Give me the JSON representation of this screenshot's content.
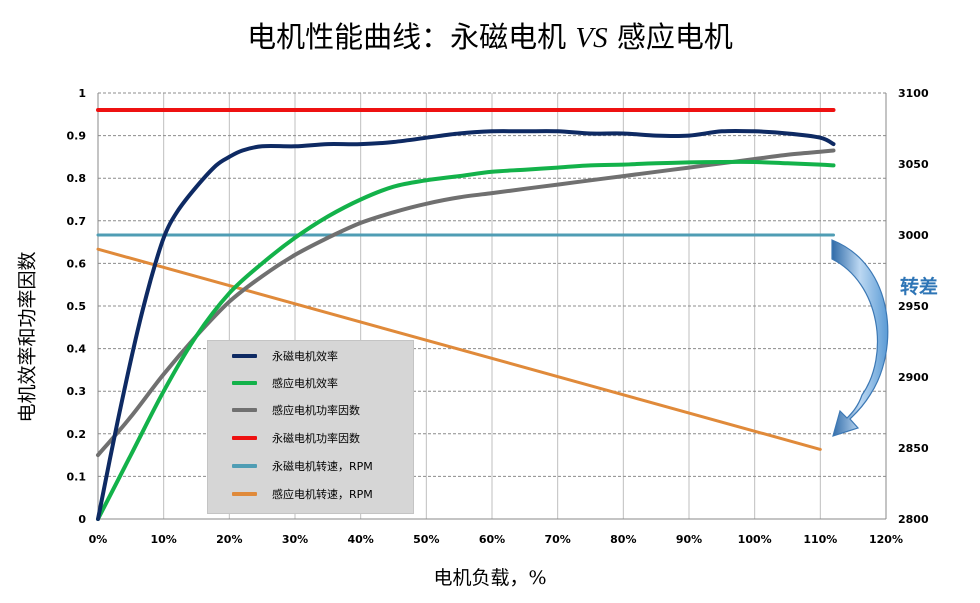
{
  "title_main": "电机性能曲线：永磁电机 ",
  "title_vs": "VS",
  "title_rest": " 感应电机",
  "ylabel_left": "电机效率和功率因数",
  "xlabel": "电机负载，%",
  "annotation": "转差",
  "colors": {
    "pm_efficiency": "#0e2a63",
    "im_efficiency": "#13b24a",
    "im_power_factor": "#707070",
    "pm_power_factor": "#ee1111",
    "pm_speed": "#4f9db4",
    "im_speed": "#e08a3a",
    "arrow": "#5b9bd5"
  },
  "legend": [
    {
      "label": "永磁电机效率",
      "color": "#0e2a63"
    },
    {
      "label": "感应电机效率",
      "color": "#13b24a"
    },
    {
      "label": "感应电机功率因数",
      "color": "#707070"
    },
    {
      "label": "永磁电机功率因数",
      "color": "#ee1111"
    },
    {
      "label": "永磁电机转速，RPM",
      "color": "#4f9db4"
    },
    {
      "label": "感应电机转速，RPM",
      "color": "#e08a3a"
    }
  ],
  "chart_data": {
    "type": "line",
    "x_ticks": [
      "0%",
      "10%",
      "20%",
      "30%",
      "40%",
      "50%",
      "60%",
      "70%",
      "80%",
      "90%",
      "100%",
      "110%",
      "120%"
    ],
    "y_left_ticks": [
      "0",
      "0.1",
      "0.2",
      "0.3",
      "0.4",
      "0.5",
      "0.6",
      "0.7",
      "0.8",
      "0.9",
      "1"
    ],
    "y_right_ticks": [
      "2800",
      "2850",
      "2900",
      "2950",
      "3000",
      "3050",
      "3100"
    ],
    "xlim": [
      0,
      120
    ],
    "ylim_left": [
      0,
      1
    ],
    "ylim_right": [
      2800,
      3100
    ],
    "grid": true,
    "legend_position": "lower-left",
    "series": [
      {
        "name": "永磁电机效率",
        "axis": "left",
        "x": [
          0,
          3,
          6,
          8,
          10,
          12,
          15,
          18,
          20,
          22,
          25,
          30,
          35,
          40,
          45,
          50,
          55,
          60,
          65,
          70,
          75,
          80,
          85,
          90,
          95,
          100,
          105,
          110,
          112
        ],
        "y": [
          0.0,
          0.23,
          0.44,
          0.56,
          0.66,
          0.72,
          0.78,
          0.83,
          0.85,
          0.865,
          0.875,
          0.875,
          0.88,
          0.88,
          0.885,
          0.895,
          0.905,
          0.91,
          0.91,
          0.91,
          0.905,
          0.905,
          0.9,
          0.9,
          0.91,
          0.91,
          0.905,
          0.895,
          0.88
        ]
      },
      {
        "name": "感应电机效率",
        "axis": "left",
        "x": [
          0,
          5,
          10,
          15,
          20,
          25,
          30,
          35,
          40,
          45,
          50,
          55,
          60,
          65,
          70,
          75,
          80,
          85,
          90,
          95,
          100,
          105,
          110,
          112
        ],
        "y": [
          0.0,
          0.15,
          0.3,
          0.43,
          0.53,
          0.6,
          0.66,
          0.71,
          0.75,
          0.78,
          0.795,
          0.805,
          0.815,
          0.82,
          0.825,
          0.83,
          0.832,
          0.835,
          0.837,
          0.838,
          0.838,
          0.835,
          0.832,
          0.83
        ]
      },
      {
        "name": "感应电机功率因数",
        "axis": "left",
        "x": [
          0,
          5,
          10,
          15,
          20,
          25,
          30,
          35,
          40,
          45,
          50,
          55,
          60,
          65,
          70,
          75,
          80,
          85,
          90,
          95,
          100,
          105,
          110,
          112
        ],
        "y": [
          0.15,
          0.24,
          0.34,
          0.43,
          0.51,
          0.57,
          0.62,
          0.66,
          0.695,
          0.72,
          0.74,
          0.755,
          0.765,
          0.775,
          0.785,
          0.795,
          0.805,
          0.815,
          0.825,
          0.835,
          0.845,
          0.855,
          0.862,
          0.865
        ]
      },
      {
        "name": "永磁电机功率因数",
        "axis": "left",
        "x": [
          0,
          112
        ],
        "y": [
          0.96,
          0.96
        ]
      },
      {
        "name": "永磁电机转速，RPM",
        "axis": "right",
        "x": [
          0,
          112
        ],
        "y": [
          3000,
          3000
        ]
      },
      {
        "name": "感应电机转速，RPM",
        "axis": "right",
        "x": [
          0,
          110
        ],
        "y": [
          2990,
          2849
        ]
      }
    ]
  }
}
